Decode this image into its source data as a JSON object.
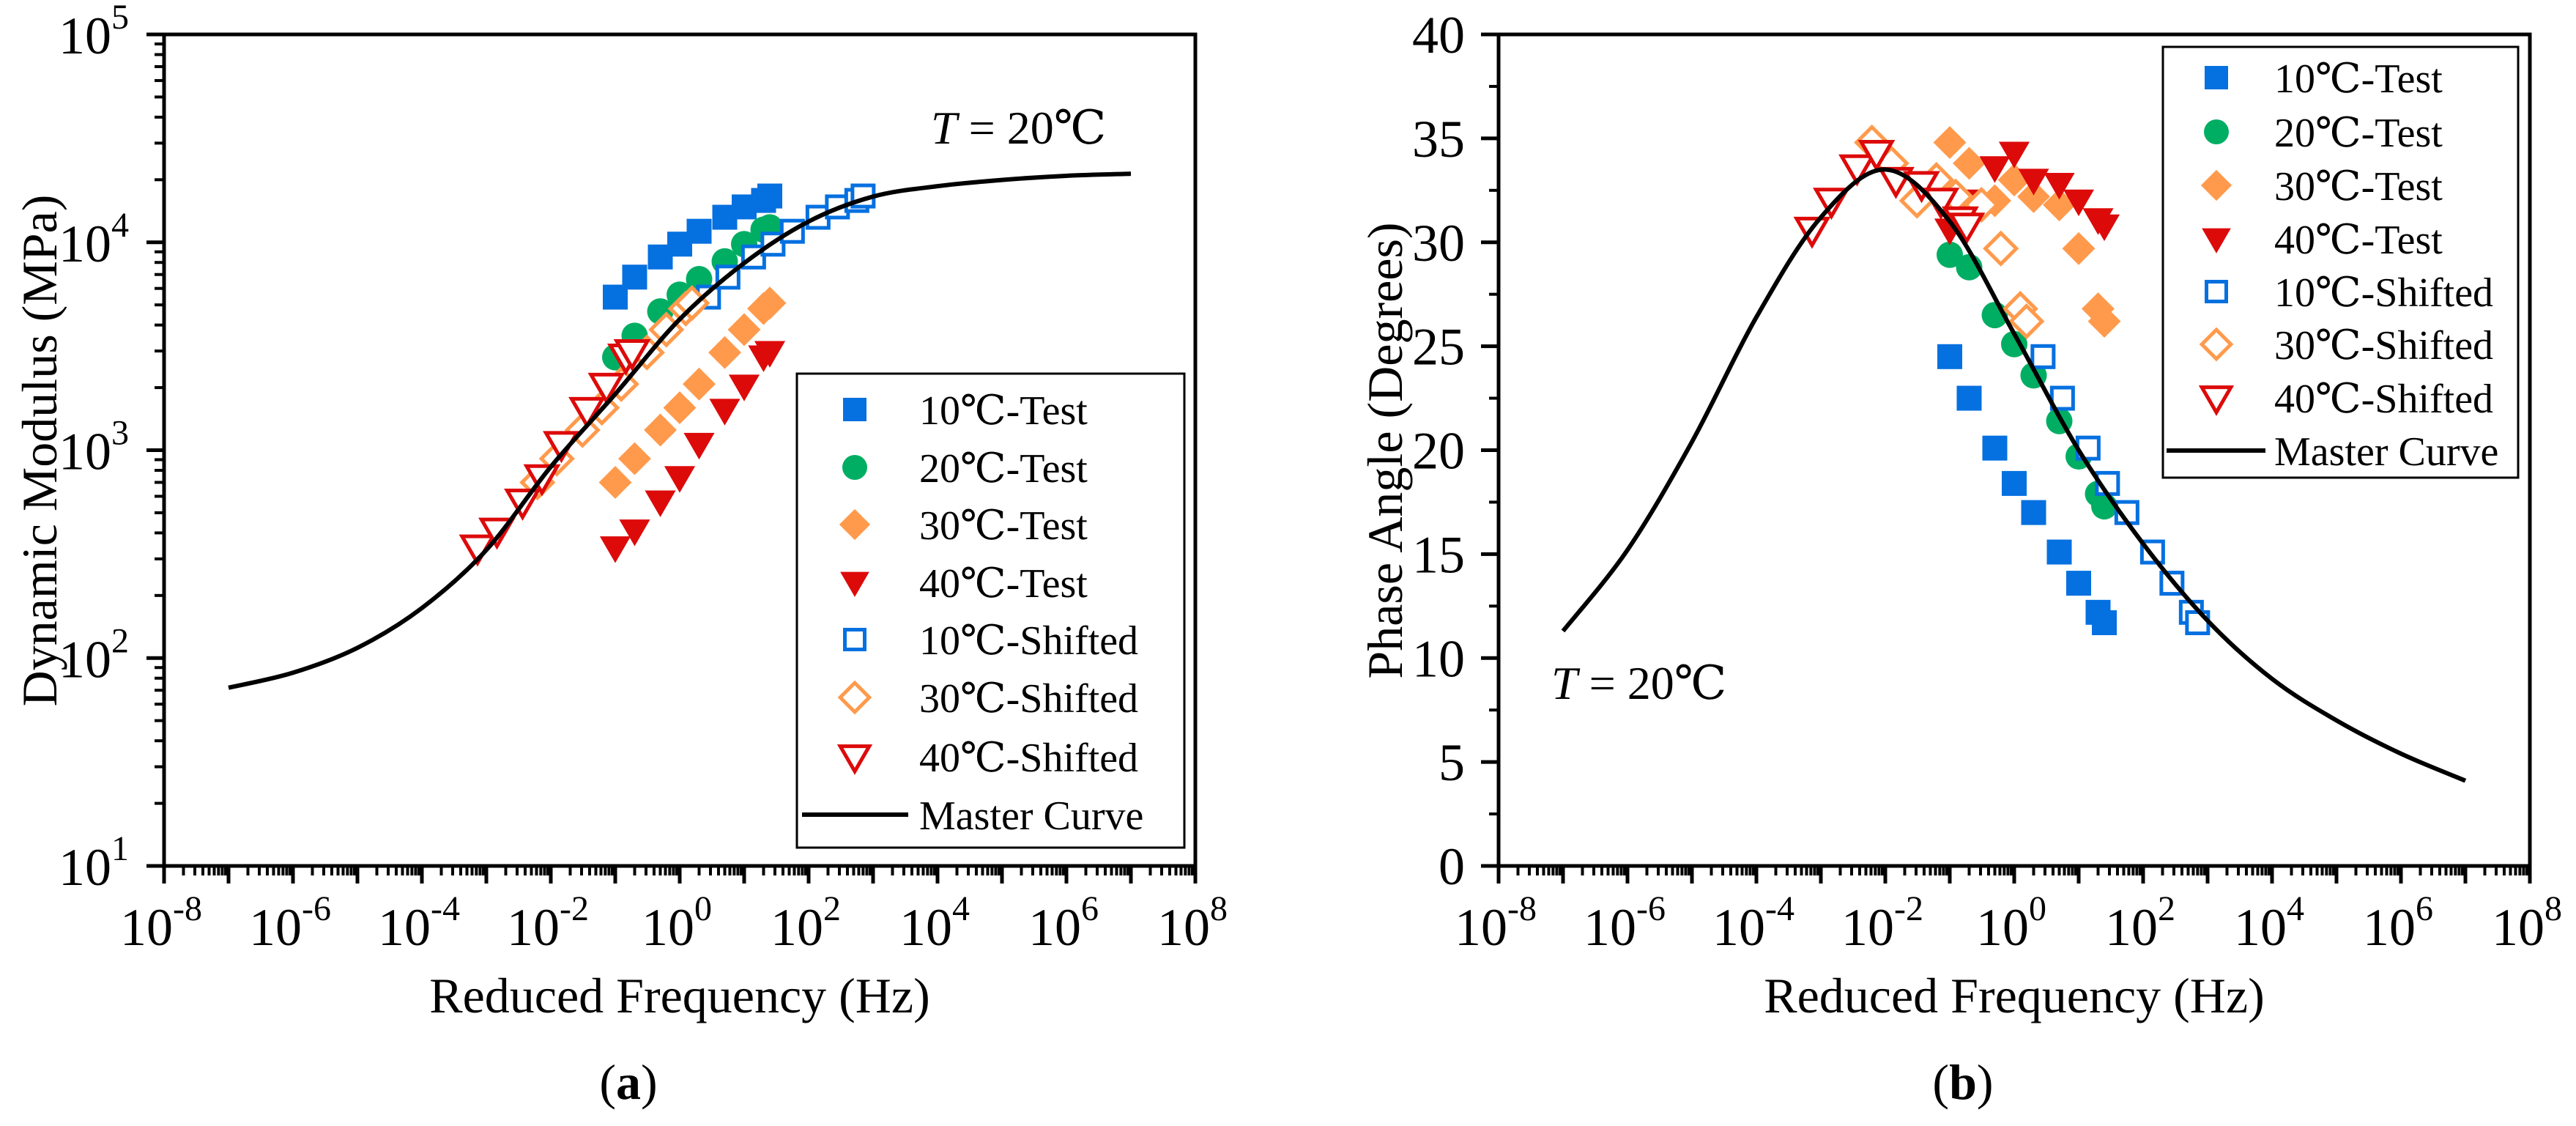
{
  "colors": {
    "blue": "#0570E0",
    "green": "#00AE63",
    "orange": "#FF9A4C",
    "red": "#DD0A0A",
    "black": "#000000"
  },
  "chart_data": [
    {
      "panel_label": "a",
      "type": "scatter",
      "title": "",
      "xlabel": "Reduced Frequency (Hz)",
      "ylabel": "Dynamic Modulus (MPa)",
      "xscale": "log",
      "yscale": "log",
      "xlim": [
        1e-08,
        100000000.0
      ],
      "ylim": [
        10,
        100000
      ],
      "x_ticks": [
        -8,
        -6,
        -4,
        -2,
        0,
        2,
        4,
        6,
        8
      ],
      "y_ticks": [
        1,
        2,
        3,
        4,
        5
      ],
      "annotation": {
        "italic": "T",
        "rest": " = 20℃"
      },
      "legend_position": "bottom-right",
      "series": [
        {
          "name": "10℃-Test",
          "marker": "square",
          "filled": true,
          "color": "blue",
          "x": [
            0.1,
            0.2,
            0.5,
            1,
            2,
            5,
            10,
            20,
            25
          ],
          "y": [
            5450,
            6800,
            8500,
            9800,
            11300,
            13200,
            14800,
            15900,
            16700
          ]
        },
        {
          "name": "20℃-Test",
          "marker": "circle",
          "filled": true,
          "color": "green",
          "x": [
            0.1,
            0.2,
            0.5,
            1,
            2,
            5,
            10,
            20,
            25
          ],
          "y": [
            2800,
            3550,
            4650,
            5600,
            6650,
            8100,
            9800,
            11500,
            11800
          ]
        },
        {
          "name": "30℃-Test",
          "marker": "diamond",
          "filled": true,
          "color": "orange",
          "x": [
            0.1,
            0.2,
            0.5,
            1,
            2,
            5,
            10,
            20,
            25
          ],
          "y": [
            700,
            910,
            1250,
            1600,
            2080,
            2950,
            3800,
            4800,
            5100
          ]
        },
        {
          "name": "40℃-Test",
          "marker": "triangle-down",
          "filled": true,
          "color": "red",
          "x": [
            0.1,
            0.2,
            0.5,
            1,
            2,
            5,
            10,
            20,
            25
          ],
          "y": [
            340,
            410,
            565,
            740,
            1070,
            1560,
            2040,
            2820,
            2960
          ]
        },
        {
          "name": "10℃-Shifted",
          "marker": "square",
          "filled": false,
          "color": "blue",
          "x": [
            2.8,
            5.6,
            14,
            28,
            56,
            140,
            280,
            560,
            700
          ],
          "y": [
            5450,
            6800,
            8500,
            9800,
            11300,
            13200,
            14800,
            15900,
            16700
          ]
        },
        {
          "name": "30℃-Shifted",
          "marker": "diamond",
          "filled": false,
          "color": "orange",
          "x": [
            0.0062,
            0.0124,
            0.031,
            0.062,
            0.124,
            0.31,
            0.62,
            1.24,
            1.55
          ],
          "y": [
            700,
            910,
            1250,
            1600,
            2080,
            2950,
            3800,
            4800,
            5100
          ]
        },
        {
          "name": "40℃-Shifted",
          "marker": "triangle-down",
          "filled": false,
          "color": "red",
          "x": [
            0.00073,
            0.00146,
            0.00365,
            0.0073,
            0.0146,
            0.0365,
            0.073,
            0.146,
            0.1825
          ],
          "y": [
            340,
            410,
            565,
            740,
            1070,
            1560,
            2040,
            2820,
            2960
          ]
        },
        {
          "name": "Master Curve",
          "marker": "line",
          "color": "black",
          "x": [
            1e-07,
            1e-06,
            1e-05,
            0.0001,
            0.001,
            0.01,
            0.1,
            1,
            10,
            100,
            1000.0,
            10000.0,
            100000.0,
            1000000.0,
            10000000.0
          ],
          "y": [
            72,
            85,
            112,
            174,
            331,
            832,
            1862,
            4266,
            7943,
            12589,
            16596,
            18621,
            19953,
            20893,
            21380
          ]
        }
      ]
    },
    {
      "panel_label": "b",
      "type": "scatter",
      "title": "",
      "xlabel": "Reduced Frequency (Hz)",
      "ylabel": "Phase Angle (Degrees)",
      "xscale": "log",
      "yscale": "linear",
      "xlim": [
        1e-08,
        100000000.0
      ],
      "ylim": [
        0,
        40
      ],
      "x_ticks": [
        -8,
        -6,
        -4,
        -2,
        0,
        2,
        4,
        6,
        8
      ],
      "y_ticks": [
        "0",
        "5",
        "10",
        "15",
        "20",
        "25",
        "30",
        "35",
        "40"
      ],
      "annotation": {
        "italic": "T",
        "rest": " = 20℃"
      },
      "legend_position": "top-right",
      "series": [
        {
          "name": "10℃-Test",
          "marker": "square",
          "filled": true,
          "color": "blue",
          "x": [
            0.1,
            0.2,
            0.5,
            1,
            2,
            5,
            10,
            20,
            25
          ],
          "y": [
            24.5,
            22.5,
            20.1,
            18.4,
            17.0,
            15.1,
            13.6,
            12.2,
            11.7
          ]
        },
        {
          "name": "20℃-Test",
          "marker": "circle",
          "filled": true,
          "color": "green",
          "x": [
            0.1,
            0.2,
            0.5,
            1,
            2,
            5,
            10,
            20,
            25
          ],
          "y": [
            29.4,
            28.8,
            26.5,
            25.1,
            23.6,
            21.4,
            19.7,
            17.9,
            17.3
          ]
        },
        {
          "name": "30℃-Test",
          "marker": "diamond",
          "filled": true,
          "color": "orange",
          "x": [
            0.1,
            0.2,
            0.5,
            1,
            2,
            5,
            10,
            20,
            25
          ],
          "y": [
            34.8,
            33.8,
            32.0,
            33.0,
            32.2,
            31.8,
            29.7,
            26.8,
            26.2
          ]
        },
        {
          "name": "40℃-Test",
          "marker": "triangle-down",
          "filled": true,
          "color": "red",
          "x": [
            0.1,
            0.2,
            0.5,
            1,
            2,
            5,
            10,
            20,
            25
          ],
          "y": [
            30.6,
            32.0,
            33.6,
            34.3,
            33.0,
            32.8,
            32.0,
            31.1,
            30.8
          ]
        },
        {
          "name": "10℃-Shifted",
          "marker": "square",
          "filled": false,
          "color": "blue",
          "x": [
            2.8,
            5.6,
            14,
            28,
            56,
            140,
            280,
            560,
            700
          ],
          "y": [
            24.5,
            22.5,
            20.1,
            18.4,
            17.0,
            15.1,
            13.6,
            12.2,
            11.7
          ]
        },
        {
          "name": "30℃-Shifted",
          "marker": "diamond",
          "filled": false,
          "color": "orange",
          "x": [
            0.0062,
            0.0124,
            0.031,
            0.062,
            0.124,
            0.31,
            0.62,
            1.24,
            1.55
          ],
          "y": [
            34.8,
            33.8,
            32.0,
            33.0,
            32.2,
            31.8,
            29.7,
            26.8,
            26.2
          ]
        },
        {
          "name": "40℃-Shifted",
          "marker": "triangle-down",
          "filled": false,
          "color": "red",
          "x": [
            0.00073,
            0.00146,
            0.00365,
            0.0073,
            0.0146,
            0.0365,
            0.073,
            0.146,
            0.1825
          ],
          "y": [
            30.6,
            32.0,
            33.6,
            34.3,
            33.0,
            32.8,
            32.0,
            31.1,
            30.8
          ]
        },
        {
          "name": "Master Curve",
          "marker": "line",
          "color": "black",
          "x": [
            1e-07,
            1e-06,
            1e-05,
            0.0001,
            0.001,
            0.01,
            0.1,
            1,
            10,
            100,
            1000.0,
            10000.0,
            100000.0,
            1000000.0,
            10000000.0
          ],
          "y": [
            11.3,
            15.2,
            20.4,
            26.4,
            31.2,
            33.5,
            31.0,
            25.6,
            20.0,
            15.5,
            11.8,
            9.0,
            7.0,
            5.4,
            4.1
          ]
        }
      ]
    }
  ]
}
